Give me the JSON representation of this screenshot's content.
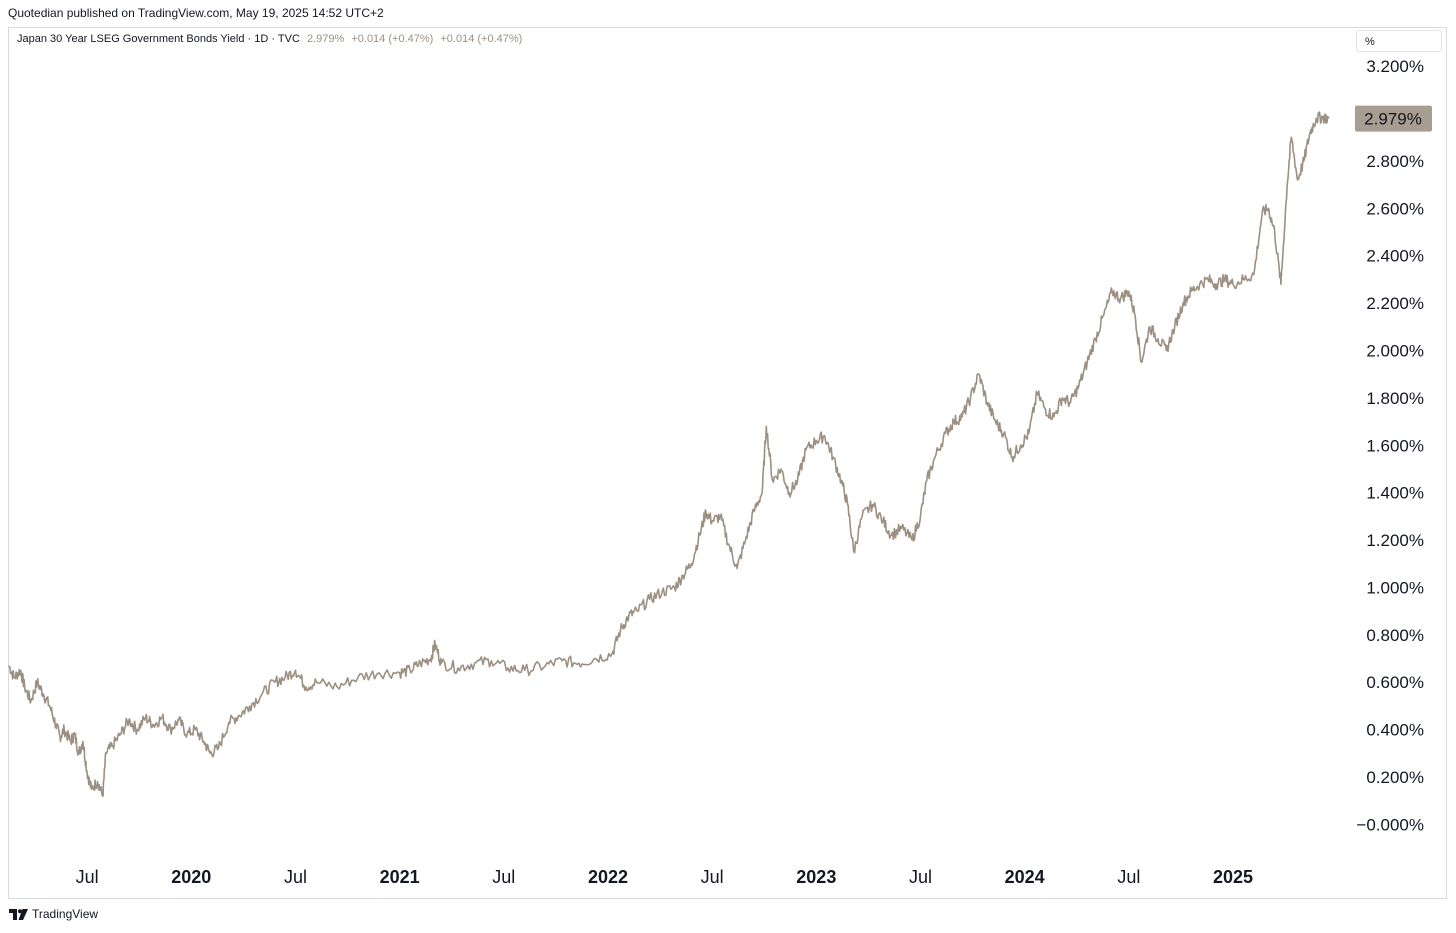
{
  "header": {
    "published": "Quotedian published on TradingView.com, May 19, 2025 14:52 UTC+2"
  },
  "legend": {
    "symbol": "Japan 30 Year LSEG Government Bonds Yield · 1D · TVC",
    "last": "2.979%",
    "change1": "+0.014 (+0.47%)",
    "change2": "+0.014 (+0.47%)"
  },
  "unit_label": "%",
  "footer": {
    "brand": "TradingView",
    "logo_icon": "tradingview-logo-icon"
  },
  "colors": {
    "line": "#9c9082",
    "last_label_bg": "#a89d91",
    "text": "#131722"
  },
  "chart_data": {
    "type": "line",
    "title": "Japan 30 Year LSEG Government Bonds Yield · 1D · TVC",
    "xlabel": "",
    "ylabel": "%",
    "ylim": [
      -0.1,
      3.26
    ],
    "x_range": [
      2019.125,
      2025.48
    ],
    "y_ticks": [
      3.2,
      2.8,
      2.6,
      2.4,
      2.2,
      2.0,
      1.8,
      1.6,
      1.4,
      1.2,
      1.0,
      0.8,
      0.6,
      0.4,
      0.2,
      0.0
    ],
    "y_tick_labels": [
      "3.200%",
      "2.800%",
      "2.600%",
      "2.400%",
      "2.200%",
      "2.000%",
      "1.800%",
      "1.600%",
      "1.400%",
      "1.200%",
      "1.000%",
      "0.800%",
      "0.600%",
      "0.400%",
      "0.200%",
      "−0.000%"
    ],
    "x_ticks": [
      {
        "t": 2019.5,
        "label": "Jul",
        "year": false
      },
      {
        "t": 2020.0,
        "label": "2020",
        "year": true
      },
      {
        "t": 2020.5,
        "label": "Jul",
        "year": false
      },
      {
        "t": 2021.0,
        "label": "2021",
        "year": true
      },
      {
        "t": 2021.5,
        "label": "Jul",
        "year": false
      },
      {
        "t": 2022.0,
        "label": "2022",
        "year": true
      },
      {
        "t": 2022.5,
        "label": "Jul",
        "year": false
      },
      {
        "t": 2023.0,
        "label": "2023",
        "year": true
      },
      {
        "t": 2023.5,
        "label": "Jul",
        "year": false
      },
      {
        "t": 2024.0,
        "label": "2024",
        "year": true
      },
      {
        "t": 2024.5,
        "label": "Jul",
        "year": false
      },
      {
        "t": 2025.0,
        "label": "2025",
        "year": true
      }
    ],
    "last_value": 2.979,
    "last_value_label": "2.979%",
    "series": [
      {
        "name": "Japan 30Y yield",
        "points": [
          [
            2019.125,
            0.67
          ],
          [
            2019.15,
            0.62
          ],
          [
            2019.18,
            0.65
          ],
          [
            2019.2,
            0.58
          ],
          [
            2019.23,
            0.52
          ],
          [
            2019.26,
            0.6
          ],
          [
            2019.29,
            0.55
          ],
          [
            2019.32,
            0.5
          ],
          [
            2019.35,
            0.42
          ],
          [
            2019.37,
            0.37
          ],
          [
            2019.39,
            0.4
          ],
          [
            2019.42,
            0.35
          ],
          [
            2019.44,
            0.38
          ],
          [
            2019.46,
            0.3
          ],
          [
            2019.48,
            0.35
          ],
          [
            2019.5,
            0.22
          ],
          [
            2019.52,
            0.15
          ],
          [
            2019.55,
            0.18
          ],
          [
            2019.575,
            0.12
          ],
          [
            2019.59,
            0.3
          ],
          [
            2019.62,
            0.33
          ],
          [
            2019.66,
            0.38
          ],
          [
            2019.7,
            0.44
          ],
          [
            2019.74,
            0.4
          ],
          [
            2019.78,
            0.45
          ],
          [
            2019.82,
            0.42
          ],
          [
            2019.86,
            0.45
          ],
          [
            2019.9,
            0.4
          ],
          [
            2019.94,
            0.44
          ],
          [
            2019.98,
            0.38
          ],
          [
            2020.02,
            0.4
          ],
          [
            2020.06,
            0.35
          ],
          [
            2020.09,
            0.3
          ],
          [
            2020.13,
            0.32
          ],
          [
            2020.18,
            0.43
          ],
          [
            2020.23,
            0.46
          ],
          [
            2020.28,
            0.5
          ],
          [
            2020.34,
            0.55
          ],
          [
            2020.4,
            0.6
          ],
          [
            2020.45,
            0.62
          ],
          [
            2020.5,
            0.65
          ],
          [
            2020.55,
            0.58
          ],
          [
            2020.6,
            0.6
          ],
          [
            2020.7,
            0.58
          ],
          [
            2020.8,
            0.62
          ],
          [
            2020.9,
            0.64
          ],
          [
            2021.0,
            0.64
          ],
          [
            2021.05,
            0.65
          ],
          [
            2021.1,
            0.68
          ],
          [
            2021.15,
            0.7
          ],
          [
            2021.17,
            0.76
          ],
          [
            2021.2,
            0.68
          ],
          [
            2021.28,
            0.66
          ],
          [
            2021.36,
            0.68
          ],
          [
            2021.44,
            0.69
          ],
          [
            2021.52,
            0.66
          ],
          [
            2021.6,
            0.65
          ],
          [
            2021.7,
            0.67
          ],
          [
            2021.78,
            0.69
          ],
          [
            2021.86,
            0.68
          ],
          [
            2021.94,
            0.7
          ],
          [
            2022.02,
            0.72
          ],
          [
            2022.06,
            0.82
          ],
          [
            2022.1,
            0.88
          ],
          [
            2022.14,
            0.9
          ],
          [
            2022.2,
            0.95
          ],
          [
            2022.26,
            0.98
          ],
          [
            2022.32,
            1.0
          ],
          [
            2022.36,
            1.05
          ],
          [
            2022.4,
            1.1
          ],
          [
            2022.44,
            1.22
          ],
          [
            2022.47,
            1.32
          ],
          [
            2022.5,
            1.28
          ],
          [
            2022.54,
            1.3
          ],
          [
            2022.58,
            1.18
          ],
          [
            2022.62,
            1.08
          ],
          [
            2022.66,
            1.2
          ],
          [
            2022.7,
            1.32
          ],
          [
            2022.74,
            1.4
          ],
          [
            2022.76,
            1.68
          ],
          [
            2022.79,
            1.45
          ],
          [
            2022.83,
            1.5
          ],
          [
            2022.87,
            1.4
          ],
          [
            2022.91,
            1.45
          ],
          [
            2022.95,
            1.58
          ],
          [
            2023.0,
            1.62
          ],
          [
            2023.04,
            1.64
          ],
          [
            2023.08,
            1.55
          ],
          [
            2023.12,
            1.45
          ],
          [
            2023.15,
            1.35
          ],
          [
            2023.18,
            1.15
          ],
          [
            2023.22,
            1.3
          ],
          [
            2023.27,
            1.35
          ],
          [
            2023.32,
            1.28
          ],
          [
            2023.36,
            1.22
          ],
          [
            2023.41,
            1.25
          ],
          [
            2023.46,
            1.2
          ],
          [
            2023.5,
            1.3
          ],
          [
            2023.53,
            1.45
          ],
          [
            2023.57,
            1.55
          ],
          [
            2023.62,
            1.65
          ],
          [
            2023.66,
            1.7
          ],
          [
            2023.7,
            1.72
          ],
          [
            2023.74,
            1.8
          ],
          [
            2023.78,
            1.9
          ],
          [
            2023.82,
            1.78
          ],
          [
            2023.86,
            1.7
          ],
          [
            2023.9,
            1.65
          ],
          [
            2023.94,
            1.55
          ],
          [
            2023.98,
            1.6
          ],
          [
            2024.02,
            1.65
          ],
          [
            2024.06,
            1.82
          ],
          [
            2024.1,
            1.75
          ],
          [
            2024.14,
            1.72
          ],
          [
            2024.18,
            1.8
          ],
          [
            2024.22,
            1.78
          ],
          [
            2024.26,
            1.85
          ],
          [
            2024.3,
            1.95
          ],
          [
            2024.34,
            2.05
          ],
          [
            2024.38,
            2.15
          ],
          [
            2024.42,
            2.25
          ],
          [
            2024.46,
            2.22
          ],
          [
            2024.5,
            2.25
          ],
          [
            2024.53,
            2.15
          ],
          [
            2024.56,
            1.95
          ],
          [
            2024.6,
            2.1
          ],
          [
            2024.64,
            2.05
          ],
          [
            2024.68,
            2.0
          ],
          [
            2024.72,
            2.1
          ],
          [
            2024.76,
            2.2
          ],
          [
            2024.8,
            2.25
          ],
          [
            2024.84,
            2.28
          ],
          [
            2024.88,
            2.3
          ],
          [
            2024.92,
            2.28
          ],
          [
            2024.96,
            2.3
          ],
          [
            2025.0,
            2.28
          ],
          [
            2025.05,
            2.3
          ],
          [
            2025.1,
            2.32
          ],
          [
            2025.14,
            2.58
          ],
          [
            2025.17,
            2.6
          ],
          [
            2025.2,
            2.5
          ],
          [
            2025.23,
            2.28
          ],
          [
            2025.26,
            2.7
          ],
          [
            2025.28,
            2.9
          ],
          [
            2025.31,
            2.72
          ],
          [
            2025.34,
            2.8
          ],
          [
            2025.37,
            2.92
          ],
          [
            2025.4,
            2.98
          ],
          [
            2025.43,
            2.985
          ],
          [
            2025.46,
            2.979
          ]
        ]
      }
    ]
  }
}
